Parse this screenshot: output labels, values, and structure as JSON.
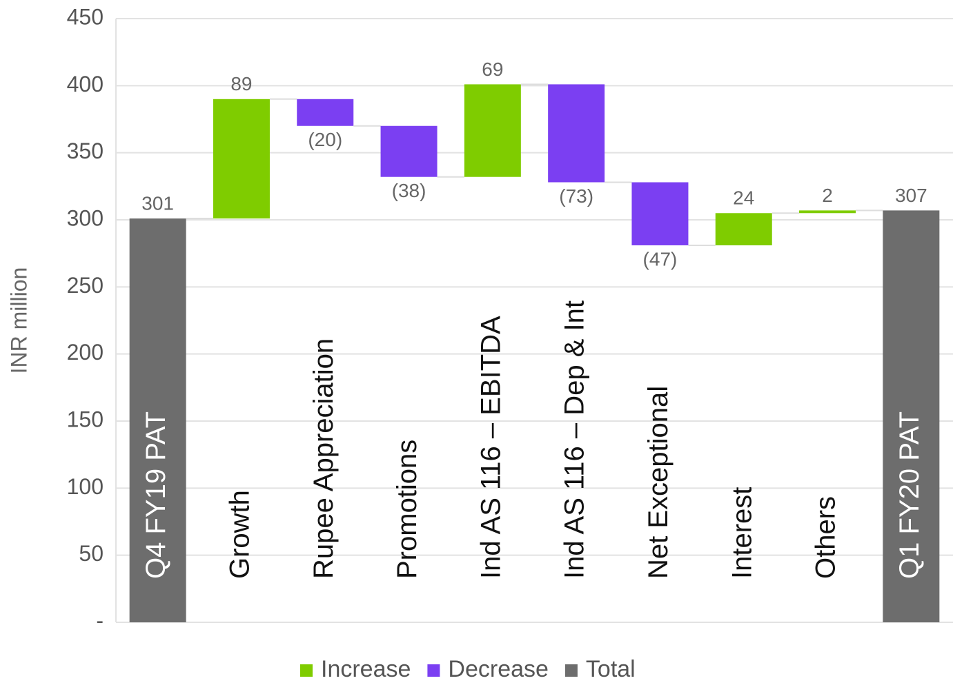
{
  "chart_data": {
    "type": "waterfall",
    "y_label": "INR million",
    "categories": [
      "Q4 FY19 PAT",
      "Growth",
      "Rupee Appreciation",
      "Promotions",
      "Ind AS 116 – EBITDA",
      "Ind AS 116 – Dep & Int",
      "Net Exceptional",
      "Interest",
      "Others",
      "Q1 FY20 PAT"
    ],
    "values": [
      301,
      89,
      -20,
      -38,
      69,
      -73,
      -47,
      24,
      2,
      307
    ],
    "value_labels": [
      "301",
      "89",
      "(20)",
      "(38)",
      "69",
      "(73)",
      "(47)",
      "24",
      "2",
      "307"
    ],
    "legend": [
      {
        "name": "Increase",
        "color": "#7fcc00"
      },
      {
        "name": "Decrease",
        "color": "#7b3ff2"
      },
      {
        "name": "Total",
        "color": "#6d6d6d"
      }
    ],
    "ylim": [
      0,
      450
    ],
    "yticks": [
      {
        "value": 0,
        "label": "-"
      },
      50,
      100,
      150,
      200,
      250,
      300,
      350,
      400,
      450
    ],
    "grid": true
  }
}
